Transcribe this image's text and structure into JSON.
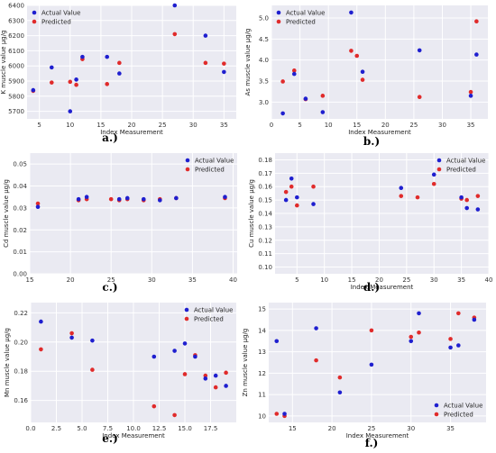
{
  "colors": {
    "actual": "#1f1fcf",
    "predicted": "#e02b2b",
    "background": "#eaeaf2"
  },
  "chart_data": [
    {
      "id": "a",
      "caption": "a.)",
      "type": "scatter",
      "xlabel": "Index Measurement",
      "ylabel": "K muscle value µg/g",
      "xlim": [
        3,
        37
      ],
      "ylim": [
        5650,
        6400
      ],
      "xticks": [
        5,
        10,
        15,
        20,
        25,
        30,
        35
      ],
      "yticks": [
        5700,
        5800,
        5900,
        6000,
        6100,
        6200,
        6300,
        6400
      ],
      "legend": "top-left",
      "series": [
        {
          "name": "Actual Value",
          "color": "#1f1fcf",
          "x": [
            4,
            7,
            10,
            11,
            12,
            16,
            18,
            27,
            32,
            35
          ],
          "y": [
            5840,
            5990,
            5700,
            5910,
            6060,
            6060,
            5950,
            6400,
            6200,
            5960
          ]
        },
        {
          "name": "Predicted",
          "color": "#e02b2b",
          "x": [
            4,
            7,
            10,
            11,
            12,
            16,
            18,
            27,
            32,
            35
          ],
          "y": [
            5835,
            5890,
            5895,
            5875,
            6045,
            5880,
            6020,
            6210,
            6020,
            6015
          ]
        }
      ]
    },
    {
      "id": "b",
      "caption": "b.)",
      "type": "scatter",
      "xlabel": "Index Measurement",
      "ylabel": "As muscle value µg/g",
      "xlim": [
        0,
        38
      ],
      "ylim": [
        2.6,
        5.3
      ],
      "xticks": [
        0,
        5,
        10,
        15,
        20,
        25,
        30,
        35
      ],
      "yticks": [
        3.0,
        3.5,
        4.0,
        4.5,
        5.0
      ],
      "legend": "top-left",
      "series": [
        {
          "name": "Actual Value",
          "color": "#1f1fcf",
          "x": [
            2,
            4,
            6,
            9,
            14,
            16,
            26,
            35,
            36
          ],
          "y": [
            2.73,
            3.67,
            3.08,
            2.76,
            5.13,
            3.72,
            4.23,
            3.15,
            4.13
          ]
        },
        {
          "name": "Predicted",
          "color": "#e02b2b",
          "x": [
            2,
            4,
            6,
            9,
            14,
            15,
            16,
            26,
            35,
            36
          ],
          "y": [
            3.49,
            3.75,
            3.07,
            3.15,
            4.22,
            4.1,
            3.53,
            3.12,
            3.24,
            4.92
          ]
        }
      ]
    },
    {
      "id": "c",
      "caption": "c.)",
      "type": "scatter",
      "xlabel": "",
      "ylabel": "Cd muscle value µg/g",
      "xlim": [
        15,
        40.5
      ],
      "ylim": [
        0.0,
        0.055
      ],
      "xticks": [
        15,
        20,
        25,
        30,
        35,
        40
      ],
      "yticks": [
        0.0,
        0.01,
        0.02,
        0.03,
        0.04,
        0.05
      ],
      "legend": "top-right",
      "series": [
        {
          "name": "Actual Value",
          "color": "#1f1fcf",
          "x": [
            16,
            21,
            22,
            26,
            27,
            29,
            31,
            33,
            39
          ],
          "y": [
            0.0305,
            0.034,
            0.035,
            0.034,
            0.0345,
            0.034,
            0.0335,
            0.0345,
            0.035
          ]
        },
        {
          "name": "Predicted",
          "color": "#e02b2b",
          "x": [
            16,
            21,
            22,
            25,
            26,
            27,
            29,
            31,
            33,
            39
          ],
          "y": [
            0.032,
            0.0335,
            0.034,
            0.034,
            0.0335,
            0.034,
            0.0335,
            0.034,
            0.0345,
            0.0345
          ]
        }
      ]
    },
    {
      "id": "d",
      "caption": "d.)",
      "type": "scatter",
      "xlabel": "Index Measurement",
      "ylabel": "Cu muscle value µg/g",
      "xlim": [
        1,
        40
      ],
      "ylim": [
        0.095,
        0.185
      ],
      "xticks": [
        5,
        10,
        15,
        20,
        25,
        30,
        35,
        40
      ],
      "yticks": [
        0.1,
        0.11,
        0.12,
        0.13,
        0.14,
        0.15,
        0.16,
        0.17,
        0.18
      ],
      "legend": "top-right",
      "series": [
        {
          "name": "Actual Value",
          "color": "#1f1fcf",
          "x": [
            3,
            4,
            5,
            8,
            24,
            30,
            35,
            36,
            38
          ],
          "y": [
            0.15,
            0.166,
            0.152,
            0.147,
            0.159,
            0.169,
            0.152,
            0.144,
            0.143
          ]
        },
        {
          "name": "Predicted",
          "color": "#e02b2b",
          "x": [
            3,
            4,
            5,
            8,
            24,
            27,
            30,
            35,
            36,
            38
          ],
          "y": [
            0.156,
            0.16,
            0.146,
            0.16,
            0.153,
            0.152,
            0.162,
            0.151,
            0.15,
            0.153
          ]
        }
      ]
    },
    {
      "id": "e",
      "caption": "e.)",
      "type": "scatter",
      "xlabel": "Index Measurement",
      "ylabel": "Mn muscle value µg/g",
      "xlim": [
        0,
        20
      ],
      "ylim": [
        0.145,
        0.227
      ],
      "xticks": [
        0.0,
        2.5,
        5.0,
        7.5,
        10.0,
        12.5,
        15.0,
        17.5
      ],
      "yticks": [
        0.16,
        0.18,
        0.2,
        0.22
      ],
      "legend": "top-right",
      "series": [
        {
          "name": "Actual Value",
          "color": "#1f1fcf",
          "x": [
            1,
            4,
            6,
            12,
            14,
            15,
            16,
            17,
            18,
            19
          ],
          "y": [
            0.214,
            0.203,
            0.201,
            0.19,
            0.194,
            0.199,
            0.19,
            0.175,
            0.177,
            0.17
          ]
        },
        {
          "name": "Predicted",
          "color": "#e02b2b",
          "x": [
            1,
            4,
            6,
            12,
            14,
            15,
            16,
            17,
            18,
            19
          ],
          "y": [
            0.195,
            0.206,
            0.181,
            0.156,
            0.15,
            0.178,
            0.191,
            0.177,
            0.169,
            0.179
          ]
        }
      ]
    },
    {
      "id": "f",
      "caption": "f.)",
      "type": "scatter",
      "xlabel": "Index Measurement",
      "ylabel": "Zn muscle value µg/g",
      "xlim": [
        12,
        39.5
      ],
      "ylim": [
        9.7,
        15.3
      ],
      "xticks": [
        15,
        20,
        25,
        30,
        35
      ],
      "yticks": [
        10,
        11,
        12,
        13,
        14,
        15
      ],
      "legend": "bottom-right",
      "series": [
        {
          "name": "Actual Value",
          "color": "#1f1fcf",
          "x": [
            13,
            14,
            18,
            21,
            25,
            30,
            31,
            35,
            36,
            38
          ],
          "y": [
            13.5,
            10.1,
            14.1,
            11.1,
            12.4,
            13.5,
            14.8,
            13.2,
            13.3,
            14.5
          ]
        },
        {
          "name": "Predicted",
          "color": "#e02b2b",
          "x": [
            13,
            14,
            18,
            21,
            25,
            30,
            31,
            35,
            36,
            38
          ],
          "y": [
            10.1,
            10.0,
            12.6,
            11.8,
            14.0,
            13.7,
            13.9,
            13.6,
            14.8,
            14.6
          ]
        }
      ]
    }
  ]
}
